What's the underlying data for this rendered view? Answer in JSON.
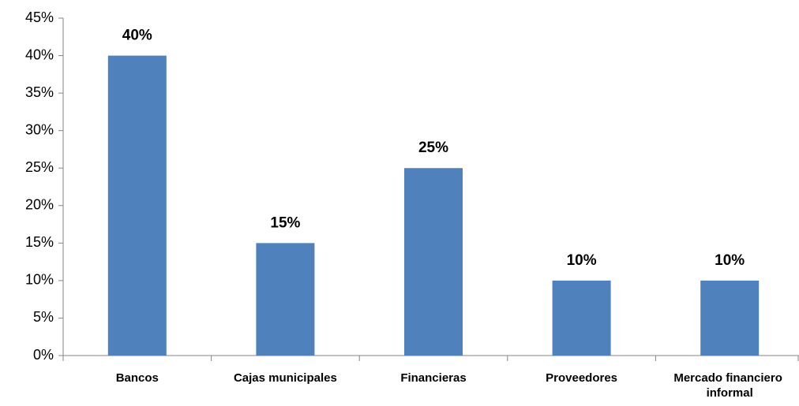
{
  "chart_data": {
    "type": "bar",
    "categories": [
      "Bancos",
      "Cajas municipales",
      "Financieras",
      "Proveedores",
      "Mercado financiero informal"
    ],
    "values": [
      40,
      15,
      25,
      10,
      10
    ],
    "value_labels": [
      "40%",
      "15%",
      "25%",
      "10%",
      "10%"
    ],
    "color": "#4f81bd",
    "ylim": [
      0,
      45
    ],
    "yticks": [
      {
        "value": 0,
        "label": "0%"
      },
      {
        "value": 5,
        "label": "5%"
      },
      {
        "value": 10,
        "label": "10%"
      },
      {
        "value": 15,
        "label": "15%"
      },
      {
        "value": 20,
        "label": "20%"
      },
      {
        "value": 25,
        "label": "25%"
      },
      {
        "value": 30,
        "label": "30%"
      },
      {
        "value": 35,
        "label": "35%"
      },
      {
        "value": 40,
        "label": "40%"
      },
      {
        "value": 45,
        "label": "45%"
      }
    ],
    "grid": false
  }
}
